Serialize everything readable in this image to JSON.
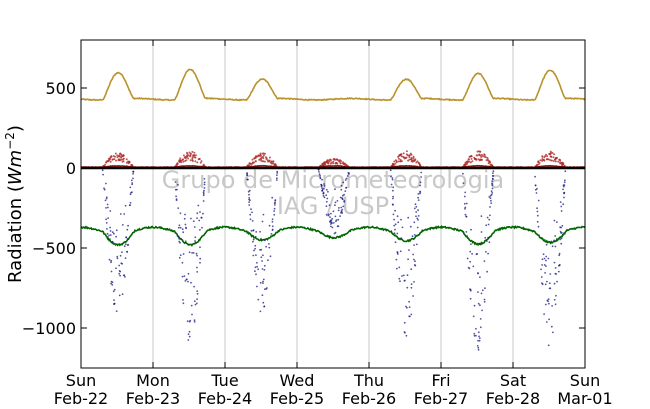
{
  "chart_data": {
    "type": "scatter",
    "title": "",
    "xlabel": "",
    "ylabel": "Radiation (Wm⁻²)",
    "ylabel_base": "Radiation (",
    "ylabel_unit": "Wm",
    "ylabel_exp": "−2",
    "ylabel_close": ")",
    "ylim": [
      -1250,
      800
    ],
    "xlim_days": [
      0,
      7
    ],
    "yticks": [
      {
        "value": 500,
        "label": "500"
      },
      {
        "value": 0,
        "label": "0"
      },
      {
        "value": -500,
        "label": "−500"
      },
      {
        "value": -1000,
        "label": "−1000"
      }
    ],
    "xticks": [
      {
        "day": 0,
        "label1": "Sun",
        "label2": "Feb-22"
      },
      {
        "day": 1,
        "label1": "Mon",
        "label2": "Feb-23"
      },
      {
        "day": 2,
        "label1": "Tue",
        "label2": "Feb-24"
      },
      {
        "day": 3,
        "label1": "Wed",
        "label2": "Feb-25"
      },
      {
        "day": 4,
        "label1": "Thu",
        "label2": "Feb-26"
      },
      {
        "day": 5,
        "label1": "Fri",
        "label2": "Feb-27"
      },
      {
        "day": 6,
        "label1": "Sat",
        "label2": "Feb-28"
      },
      {
        "day": 7,
        "label1": "Sun",
        "label2": "Mar-01"
      }
    ],
    "grid": "vertical",
    "watermark": [
      "Grupo de Micrometeorologia",
      "IAG / USP"
    ],
    "series": [
      {
        "key": "upper_gold",
        "color": "#b8922a",
        "style": "line",
        "base": 430,
        "amp": [
          165,
          185,
          125,
          0,
          125,
          160,
          180
        ],
        "slope": -5
      },
      {
        "key": "zero_line",
        "color": "#000000",
        "style": "line",
        "value": 0
      },
      {
        "key": "dark_red",
        "color": "#8b1010",
        "style": "line",
        "value": 5
      },
      {
        "key": "red_dots",
        "color": "#b03030",
        "style": "dots",
        "amp": [
          90,
          100,
          90,
          55,
          100,
          100,
          100
        ]
      },
      {
        "key": "navy_dots",
        "color": "#1a1a80",
        "style": "dots",
        "min": [
          -950,
          -1100,
          -900,
          -400,
          -1050,
          -1130,
          -1120
        ]
      },
      {
        "key": "green",
        "color": "#006400",
        "style": "line",
        "base": -390,
        "dip": [
          -70,
          -70,
          -40,
          -25,
          -45,
          -65,
          -55
        ]
      }
    ]
  }
}
